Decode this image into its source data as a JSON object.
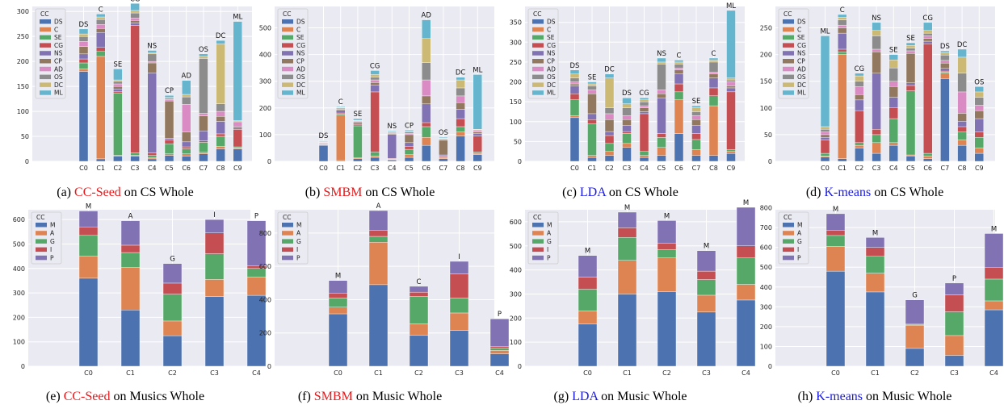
{
  "colors": {
    "DS": "#4c72b0",
    "C": "#dd8452",
    "SE": "#55a868",
    "CG": "#c44e52",
    "NS": "#8172b3",
    "CP": "#937860",
    "AD": "#da8bc3",
    "OS": "#8c8c8c",
    "DC": "#ccb974",
    "ML": "#64b5cd",
    "M": "#4c72b0",
    "A": "#dd8452",
    "G": "#55a868",
    "I": "#c44e52",
    "P": "#8172b3",
    "method_red": "#e8191b",
    "method_blue": "#1a1ae6"
  },
  "chart_data": [
    {
      "type": "bar",
      "stacked": true,
      "caption": {
        "prefix": "(a) ",
        "method": "CC-Seed",
        "method_color": "red",
        "suffix": " on CS Whole"
      },
      "legend_title": "CC",
      "legend_position": "top-left",
      "categories": [
        "C0",
        "C1",
        "C2",
        "C3",
        "C4",
        "C5",
        "C6",
        "C7",
        "C8",
        "C9"
      ],
      "yticks": [
        0,
        50,
        100,
        150,
        200,
        250,
        300
      ],
      "ylim": [
        0,
        310
      ],
      "top_labels": [
        "DS",
        "C",
        "SE",
        "CG",
        "NS",
        "CP",
        "AD",
        "OS",
        "DC",
        "ML"
      ],
      "series": [
        {
          "name": "DS",
          "values": [
            180,
            5,
            10,
            10,
            5,
            12,
            10,
            15,
            25,
            25
          ]
        },
        {
          "name": "C",
          "values": [
            5,
            205,
            2,
            2,
            2,
            3,
            5,
            3,
            5,
            2
          ]
        },
        {
          "name": "SE",
          "values": [
            12,
            10,
            125,
            5,
            5,
            20,
            10,
            20,
            20,
            2
          ]
        },
        {
          "name": "CG",
          "values": [
            8,
            8,
            3,
            255,
            5,
            8,
            4,
            3,
            5,
            35
          ]
        },
        {
          "name": "NS",
          "values": [
            10,
            30,
            5,
            5,
            160,
            3,
            10,
            20,
            25,
            3
          ]
        },
        {
          "name": "CP",
          "values": [
            15,
            8,
            5,
            5,
            20,
            75,
            20,
            30,
            10,
            3
          ]
        },
        {
          "name": "AD",
          "values": [
            10,
            8,
            5,
            5,
            3,
            3,
            55,
            5,
            10,
            8
          ]
        },
        {
          "name": "OS",
          "values": [
            10,
            10,
            5,
            10,
            15,
            2,
            15,
            110,
            15,
            2
          ]
        },
        {
          "name": "DC",
          "values": [
            5,
            5,
            3,
            5,
            2,
            2,
            5,
            4,
            120,
            2
          ]
        },
        {
          "name": "ML",
          "values": [
            10,
            6,
            22,
            14,
            5,
            4,
            28,
            5,
            7,
            198
          ]
        }
      ]
    },
    {
      "type": "bar",
      "stacked": true,
      "caption": {
        "prefix": "(b) ",
        "method": "SMBM",
        "method_color": "red",
        "suffix": " on CS Whole"
      },
      "legend_title": "CC",
      "legend_position": "top-left",
      "categories": [
        "C0",
        "C1",
        "C2",
        "C3",
        "C4",
        "C5",
        "C6",
        "C7",
        "C8",
        "C9"
      ],
      "yticks": [
        0,
        100,
        200,
        300,
        400,
        500
      ],
      "ylim": [
        0,
        580
      ],
      "top_labels": [
        "DS",
        "C",
        "SE",
        "CG",
        "NS",
        "CP",
        "AD",
        "OS",
        "DC",
        "ML"
      ],
      "series": [
        {
          "name": "DS",
          "values": [
            60,
            3,
            10,
            15,
            5,
            15,
            60,
            10,
            95,
            25
          ]
        },
        {
          "name": "C",
          "values": [
            2,
            170,
            3,
            5,
            2,
            10,
            30,
            3,
            15,
            5
          ]
        },
        {
          "name": "SE",
          "values": [
            2,
            3,
            120,
            15,
            2,
            20,
            40,
            3,
            20,
            5
          ]
        },
        {
          "name": "CG",
          "values": [
            2,
            5,
            5,
            225,
            2,
            10,
            15,
            3,
            30,
            60
          ]
        },
        {
          "name": "NS",
          "values": [
            2,
            10,
            5,
            25,
            90,
            15,
            70,
            5,
            35,
            10
          ]
        },
        {
          "name": "CP",
          "values": [
            2,
            3,
            5,
            10,
            3,
            30,
            30,
            55,
            25,
            5
          ]
        },
        {
          "name": "AD",
          "values": [
            2,
            3,
            2,
            10,
            3,
            5,
            60,
            3,
            25,
            5
          ]
        },
        {
          "name": "OS",
          "values": [
            2,
            3,
            2,
            10,
            3,
            5,
            65,
            3,
            30,
            3
          ]
        },
        {
          "name": "DC",
          "values": [
            2,
            2,
            2,
            10,
            2,
            2,
            90,
            2,
            30,
            2
          ]
        },
        {
          "name": "ML",
          "values": [
            2,
            3,
            6,
            15,
            3,
            5,
            70,
            3,
            10,
            205
          ]
        }
      ]
    },
    {
      "type": "bar",
      "stacked": true,
      "caption": {
        "prefix": "(c) ",
        "method": "LDA",
        "method_color": "blue",
        "suffix": " on CS Whole"
      },
      "legend_title": "CC",
      "legend_position": "top-left",
      "categories": [
        "C0",
        "C1",
        "C2",
        "C3",
        "C4",
        "C5",
        "C6",
        "C7",
        "C8",
        "C9"
      ],
      "yticks": [
        0,
        50,
        100,
        150,
        200,
        250,
        300,
        350
      ],
      "ylim": [
        0,
        390
      ],
      "top_labels": [
        "DS",
        "SE",
        "DC",
        "DS",
        "CG",
        "NS",
        "C",
        "SE",
        "C",
        "ML"
      ],
      "series": [
        {
          "name": "DS",
          "values": [
            110,
            10,
            15,
            35,
            10,
            15,
            70,
            15,
            15,
            20
          ]
        },
        {
          "name": "C",
          "values": [
            5,
            5,
            10,
            10,
            5,
            20,
            85,
            15,
            125,
            5
          ]
        },
        {
          "name": "SE",
          "values": [
            40,
            80,
            20,
            25,
            10,
            25,
            20,
            25,
            25,
            5
          ]
        },
        {
          "name": "CG",
          "values": [
            15,
            10,
            20,
            5,
            95,
            10,
            20,
            15,
            20,
            145
          ]
        },
        {
          "name": "NS",
          "values": [
            20,
            15,
            10,
            15,
            5,
            90,
            25,
            20,
            25,
            10
          ]
        },
        {
          "name": "CP",
          "values": [
            5,
            50,
            30,
            15,
            10,
            10,
            10,
            15,
            10,
            5
          ]
        },
        {
          "name": "AD",
          "values": [
            5,
            10,
            15,
            10,
            5,
            10,
            5,
            10,
            5,
            10
          ]
        },
        {
          "name": "OS",
          "values": [
            10,
            10,
            15,
            20,
            10,
            65,
            10,
            10,
            25,
            5
          ]
        },
        {
          "name": "DC",
          "values": [
            10,
            5,
            75,
            10,
            5,
            5,
            5,
            10,
            5,
            5
          ]
        },
        {
          "name": "ML",
          "values": [
            10,
            5,
            10,
            15,
            5,
            10,
            5,
            5,
            5,
            170
          ]
        }
      ]
    },
    {
      "type": "bar",
      "stacked": true,
      "caption": {
        "prefix": "(d) ",
        "method": "K-means",
        "method_color": "blue",
        "suffix": " on CS Whole"
      },
      "legend_title": "CC",
      "legend_position": "top-left",
      "categories": [
        "C0",
        "C1",
        "C2",
        "C3",
        "C4",
        "C5",
        "C6",
        "C7",
        "C8",
        "C9"
      ],
      "yticks": [
        0,
        50,
        100,
        150,
        200,
        250
      ],
      "ylim": [
        0,
        290
      ],
      "top_labels": [
        "ML",
        "C",
        "CG",
        "NS",
        "SE",
        "SE",
        "CG",
        "DS",
        "DC",
        "OS"
      ],
      "series": [
        {
          "name": "DS",
          "values": [
            8,
            5,
            25,
            15,
            30,
            10,
            5,
            155,
            30,
            15
          ]
        },
        {
          "name": "C",
          "values": [
            2,
            195,
            5,
            20,
            5,
            2,
            5,
            10,
            10,
            10
          ]
        },
        {
          "name": "SE",
          "values": [
            5,
            5,
            5,
            15,
            45,
            120,
            5,
            2,
            15,
            20
          ]
        },
        {
          "name": "CG",
          "values": [
            25,
            5,
            60,
            10,
            20,
            10,
            205,
            2,
            10,
            10
          ]
        },
        {
          "name": "NS",
          "values": [
            5,
            30,
            20,
            105,
            20,
            5,
            5,
            5,
            10,
            25
          ]
        },
        {
          "name": "CP",
          "values": [
            5,
            10,
            10,
            40,
            20,
            55,
            5,
            10,
            15,
            15
          ]
        },
        {
          "name": "AD",
          "values": [
            5,
            5,
            15,
            5,
            10,
            5,
            5,
            5,
            40,
            10
          ]
        },
        {
          "name": "OS",
          "values": [
            5,
            10,
            10,
            25,
            25,
            5,
            5,
            10,
            35,
            15
          ]
        },
        {
          "name": "DC",
          "values": [
            5,
            5,
            10,
            10,
            15,
            5,
            5,
            5,
            30,
            10
          ]
        },
        {
          "name": "ML",
          "values": [
            170,
            5,
            5,
            15,
            10,
            5,
            15,
            3,
            15,
            10
          ]
        }
      ]
    },
    {
      "type": "bar",
      "stacked": true,
      "caption": {
        "prefix": "(e) ",
        "method": "CC-Seed",
        "method_color": "red",
        "suffix": " on Musics Whole"
      },
      "legend_title": "CC",
      "legend_position": "top-left",
      "categories": [
        "C0",
        "C1",
        "C2",
        "C3",
        "C4"
      ],
      "yticks": [
        0,
        100,
        200,
        300,
        400,
        500,
        600
      ],
      "ylim": [
        0,
        640
      ],
      "top_labels": [
        "M",
        "A",
        "G",
        "I",
        "P"
      ],
      "series": [
        {
          "name": "M",
          "values": [
            360,
            230,
            125,
            285,
            290
          ]
        },
        {
          "name": "A",
          "values": [
            90,
            175,
            60,
            70,
            75
          ]
        },
        {
          "name": "G",
          "values": [
            85,
            60,
            110,
            105,
            35
          ]
        },
        {
          "name": "I",
          "values": [
            35,
            30,
            45,
            85,
            10
          ]
        },
        {
          "name": "P",
          "values": [
            65,
            100,
            80,
            55,
            185
          ]
        }
      ]
    },
    {
      "type": "bar",
      "stacked": true,
      "caption": {
        "prefix": "(f) ",
        "method": "SMBM",
        "method_color": "red",
        "suffix": " on Music Whole"
      },
      "legend_title": "CC",
      "legend_position": "top-left",
      "categories": [
        "C0",
        "C1",
        "C2",
        "C3",
        "C4"
      ],
      "yticks": [
        0,
        200,
        400,
        600,
        800
      ],
      "ylim": [
        0,
        940
      ],
      "top_labels": [
        "M",
        "A",
        "C",
        "I",
        "P"
      ],
      "series": [
        {
          "name": "M",
          "values": [
            315,
            490,
            185,
            215,
            75
          ]
        },
        {
          "name": "A",
          "values": [
            40,
            255,
            70,
            105,
            20
          ]
        },
        {
          "name": "G",
          "values": [
            55,
            35,
            165,
            90,
            15
          ]
        },
        {
          "name": "I",
          "values": [
            30,
            35,
            25,
            145,
            10
          ]
        },
        {
          "name": "P",
          "values": [
            75,
            120,
            35,
            75,
            165
          ]
        }
      ]
    },
    {
      "type": "bar",
      "stacked": true,
      "caption": {
        "prefix": "(g) ",
        "method": "LDA",
        "method_color": "blue",
        "suffix": " on Music Whole"
      },
      "legend_title": "CC",
      "legend_position": "top-left",
      "categories": [
        "C0",
        "C1",
        "C2",
        "C3",
        "C4"
      ],
      "yticks": [
        0,
        100,
        200,
        300,
        400,
        500,
        600
      ],
      "ylim": [
        0,
        650
      ],
      "top_labels": [
        "M",
        "M",
        "M",
        "M",
        "M"
      ],
      "series": [
        {
          "name": "M",
          "values": [
            175,
            300,
            310,
            225,
            275
          ]
        },
        {
          "name": "A",
          "values": [
            55,
            140,
            140,
            70,
            65
          ]
        },
        {
          "name": "G",
          "values": [
            90,
            95,
            35,
            65,
            110
          ]
        },
        {
          "name": "I",
          "values": [
            50,
            40,
            25,
            35,
            50
          ]
        },
        {
          "name": "P",
          "values": [
            90,
            65,
            95,
            85,
            160
          ]
        }
      ]
    },
    {
      "type": "bar",
      "stacked": true,
      "caption": {
        "prefix": "(h) ",
        "method": "K-means",
        "method_color": "blue",
        "suffix": " on Music Whole"
      },
      "legend_title": "CC",
      "legend_position": "top-left",
      "categories": [
        "C0",
        "C1",
        "C2",
        "C3",
        "C4"
      ],
      "yticks": [
        0,
        100,
        200,
        300,
        400,
        500,
        600,
        700,
        800
      ],
      "ylim": [
        0,
        790
      ],
      "top_labels": [
        "M",
        "M",
        "G",
        "P",
        "M"
      ],
      "series": [
        {
          "name": "M",
          "values": [
            480,
            375,
            90,
            55,
            285
          ]
        },
        {
          "name": "A",
          "values": [
            125,
            95,
            115,
            100,
            45
          ]
        },
        {
          "name": "G",
          "values": [
            55,
            85,
            5,
            120,
            110
          ]
        },
        {
          "name": "I",
          "values": [
            25,
            45,
            5,
            85,
            60
          ]
        },
        {
          "name": "P",
          "values": [
            85,
            50,
            120,
            60,
            170
          ]
        }
      ]
    }
  ]
}
